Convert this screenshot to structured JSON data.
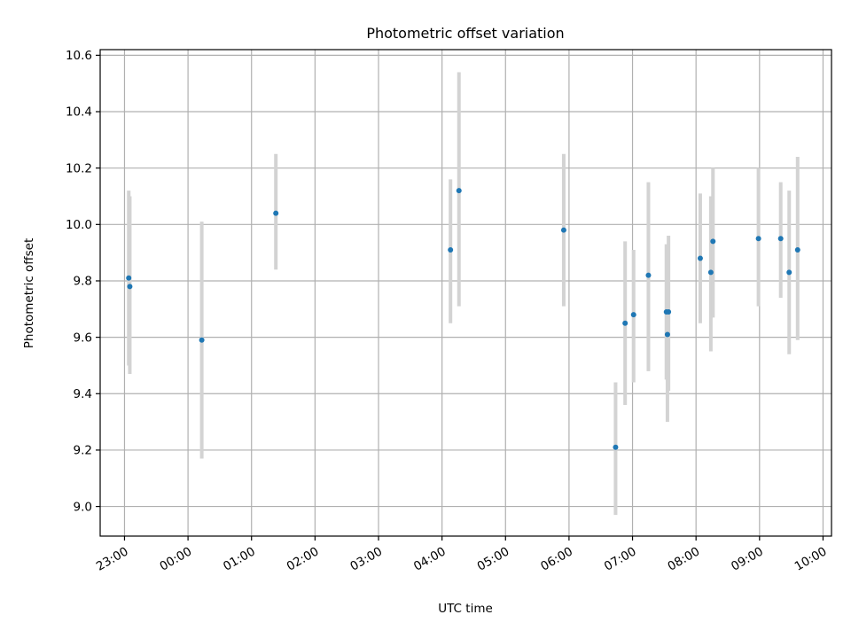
{
  "chart_data": {
    "type": "scatter",
    "title": "Photometric offset variation",
    "xlabel": "UTC time",
    "ylabel": "Photometric offset",
    "x_axis_kind": "time",
    "xlim": [
      "22:37",
      "10:08"
    ],
    "ylim": [
      8.895,
      10.62
    ],
    "x_ticks": [
      "23:00",
      "00:00",
      "01:00",
      "02:00",
      "03:00",
      "04:00",
      "05:00",
      "06:00",
      "07:00",
      "08:00",
      "09:00",
      "10:00"
    ],
    "y_ticks": [
      "9.0",
      "9.2",
      "9.4",
      "9.6",
      "9.8",
      "10.0",
      "10.2",
      "10.4",
      "10.6"
    ],
    "grid": true,
    "marker_color": "#1f77b4",
    "errorbar_color": "#d3d3d3",
    "points": [
      {
        "x": "23:04",
        "y": 9.81,
        "ylow": 9.5,
        "yhigh": 10.12
      },
      {
        "x": "23:05",
        "y": 9.78,
        "ylow": 9.47,
        "yhigh": 10.1
      },
      {
        "x": "00:13",
        "y": 9.59,
        "ylow": 9.17,
        "yhigh": 10.01
      },
      {
        "x": "01:23",
        "y": 10.04,
        "ylow": 9.84,
        "yhigh": 10.25
      },
      {
        "x": "04:08",
        "y": 9.91,
        "ylow": 9.65,
        "yhigh": 10.16
      },
      {
        "x": "04:16",
        "y": 10.12,
        "ylow": 9.71,
        "yhigh": 10.54
      },
      {
        "x": "05:55",
        "y": 9.98,
        "ylow": 9.71,
        "yhigh": 10.25
      },
      {
        "x": "06:44",
        "y": 9.21,
        "ylow": 8.97,
        "yhigh": 9.44
      },
      {
        "x": "06:53",
        "y": 9.65,
        "ylow": 9.36,
        "yhigh": 9.94
      },
      {
        "x": "07:01",
        "y": 9.68,
        "ylow": 9.44,
        "yhigh": 9.91
      },
      {
        "x": "07:15",
        "y": 9.82,
        "ylow": 9.48,
        "yhigh": 10.15
      },
      {
        "x": "07:32",
        "y": 9.69,
        "ylow": 9.45,
        "yhigh": 9.93
      },
      {
        "x": "07:33",
        "y": 9.61,
        "ylow": 9.3,
        "yhigh": 9.92
      },
      {
        "x": "07:34",
        "y": 9.69,
        "ylow": 9.41,
        "yhigh": 9.96
      },
      {
        "x": "08:04",
        "y": 9.88,
        "ylow": 9.65,
        "yhigh": 10.11
      },
      {
        "x": "08:14",
        "y": 9.83,
        "ylow": 9.55,
        "yhigh": 10.1
      },
      {
        "x": "08:16",
        "y": 9.94,
        "ylow": 9.67,
        "yhigh": 10.2
      },
      {
        "x": "08:59",
        "y": 9.95,
        "ylow": 9.71,
        "yhigh": 10.2
      },
      {
        "x": "09:20",
        "y": 9.95,
        "ylow": 9.74,
        "yhigh": 10.15
      },
      {
        "x": "09:28",
        "y": 9.83,
        "ylow": 9.54,
        "yhigh": 10.12
      },
      {
        "x": "09:36",
        "y": 9.91,
        "ylow": 9.59,
        "yhigh": 10.24
      }
    ]
  }
}
